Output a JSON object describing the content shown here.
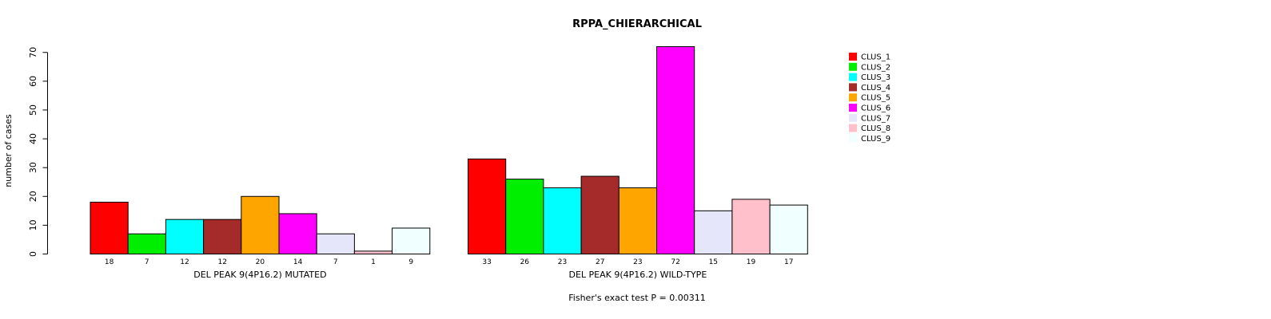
{
  "chart_data": {
    "type": "bar",
    "title": "RPPA_CHIERARCHICAL",
    "ylabel": "number of cases",
    "ylim": [
      0,
      72
    ],
    "yticks": [
      0,
      10,
      20,
      30,
      40,
      50,
      60,
      70
    ],
    "series_names": [
      "CLUS_1",
      "CLUS_2",
      "CLUS_3",
      "CLUS_4",
      "CLUS_5",
      "CLUS_6",
      "CLUS_7",
      "CLUS_8",
      "CLUS_9"
    ],
    "colors": [
      "#ff0000",
      "#00ee00",
      "#00ffff",
      "#a52a2a",
      "#ffa500",
      "#ff00ff",
      "#e6e6fa",
      "#ffc0cb",
      "#f0ffff"
    ],
    "groups": [
      {
        "label": "DEL PEAK  9(4P16.2) MUTATED",
        "values": [
          18,
          7,
          12,
          12,
          20,
          14,
          7,
          1,
          9
        ],
        "value_labels": [
          "18",
          "7",
          "12",
          "12",
          "20",
          "14",
          "7",
          "1",
          "9"
        ]
      },
      {
        "label": "DEL PEAK  9(4P16.2) WILD-TYPE",
        "values": [
          33,
          26,
          23,
          27,
          23,
          72,
          15,
          19,
          17
        ],
        "value_labels": [
          "33",
          "26",
          "23",
          "27",
          "23",
          "72",
          "15",
          "19",
          "17"
        ]
      }
    ],
    "legend_position": "top-right",
    "footnote": "Fisher's exact test P = 0.00311"
  }
}
